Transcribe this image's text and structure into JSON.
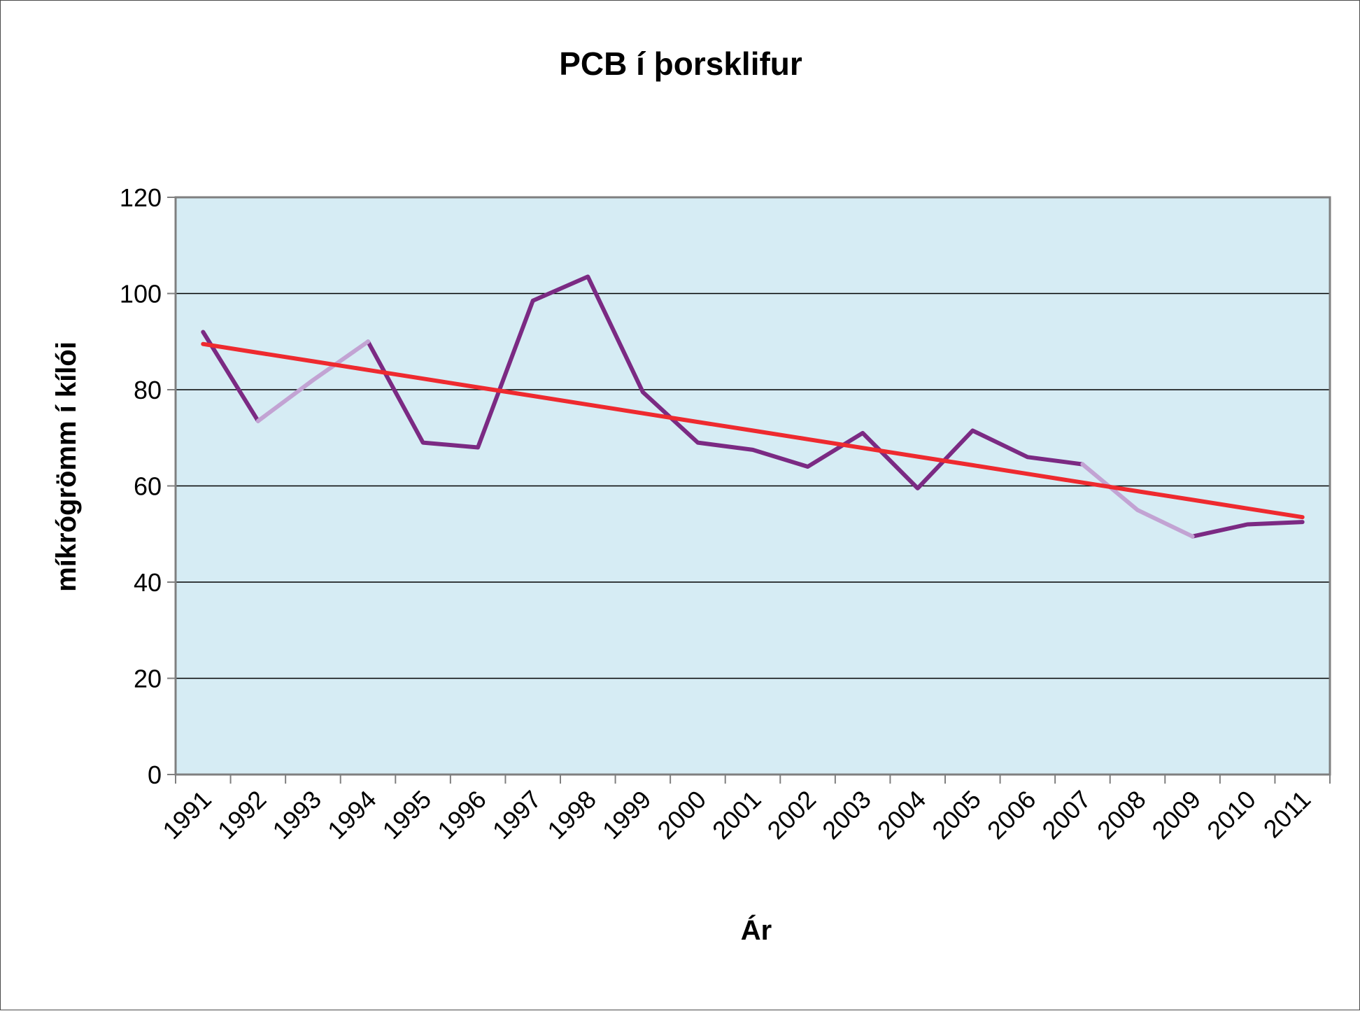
{
  "chart_data": {
    "type": "line",
    "title": "PCB í þorsklifur",
    "xlabel": "Ár",
    "ylabel": "míkrógrömm í kílói",
    "categories": [
      "1991",
      "1992",
      "1993",
      "1994",
      "1995",
      "1996",
      "1997",
      "1998",
      "1999",
      "2000",
      "2001",
      "2002",
      "2003",
      "2004",
      "2005",
      "2006",
      "2007",
      "2008",
      "2009",
      "2010",
      "2011"
    ],
    "ylim": [
      0,
      120
    ],
    "yticks": [
      0,
      20,
      40,
      60,
      80,
      100,
      120
    ],
    "grid": true,
    "series": [
      {
        "values": [
          92,
          73.5,
          null,
          90,
          69,
          68,
          98.5,
          103.5,
          79.5,
          69,
          67.5,
          64,
          71,
          59.5,
          71.5,
          66,
          64.5,
          null,
          49.5,
          52,
          52.5
        ],
        "color": "#7b2a83"
      },
      {
        "values": [
          null,
          73.5,
          82,
          90,
          null,
          null,
          null,
          null,
          null,
          null,
          null,
          null,
          null,
          null,
          null,
          null,
          64.5,
          55,
          49.5,
          null,
          null
        ],
        "color": "#c2a3d3"
      },
      {
        "values": [
          89.5,
          87.7,
          85.9,
          84.1,
          82.3,
          80.5,
          78.7,
          76.9,
          75.1,
          73.3,
          71.5,
          69.7,
          67.9,
          66.1,
          64.3,
          62.5,
          60.7,
          58.9,
          57.1,
          55.3,
          53.5
        ],
        "color": "#ee2a2f"
      }
    ],
    "colors": {
      "plot_background": "#d6ecf4",
      "gridline": "#000000",
      "axis": "#7f7f7f"
    }
  }
}
